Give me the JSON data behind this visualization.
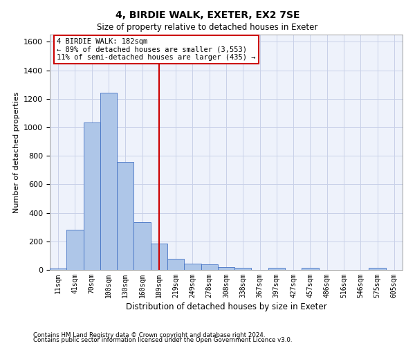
{
  "title": "4, BIRDIE WALK, EXETER, EX2 7SE",
  "subtitle": "Size of property relative to detached houses in Exeter",
  "xlabel": "Distribution of detached houses by size in Exeter",
  "ylabel": "Number of detached properties",
  "footnote1": "Contains HM Land Registry data © Crown copyright and database right 2024.",
  "footnote2": "Contains public sector information licensed under the Open Government Licence v3.0.",
  "bin_labels": [
    "11sqm",
    "41sqm",
    "70sqm",
    "100sqm",
    "130sqm",
    "160sqm",
    "189sqm",
    "219sqm",
    "249sqm",
    "278sqm",
    "308sqm",
    "338sqm",
    "367sqm",
    "397sqm",
    "427sqm",
    "457sqm",
    "486sqm",
    "516sqm",
    "546sqm",
    "575sqm",
    "605sqm"
  ],
  "bar_heights": [
    10,
    280,
    1035,
    1240,
    755,
    335,
    182,
    80,
    45,
    38,
    20,
    13,
    0,
    14,
    0,
    13,
    0,
    0,
    0,
    13,
    0
  ],
  "bar_color": "#aec6e8",
  "bar_edge_color": "#4472c4",
  "ylim": [
    0,
    1650
  ],
  "yticks": [
    0,
    200,
    400,
    600,
    800,
    1000,
    1200,
    1400,
    1600
  ],
  "vline_bin_index": 6,
  "annotation_line1": "4 BIRDIE WALK: 182sqm",
  "annotation_line2": "← 89% of detached houses are smaller (3,553)",
  "annotation_line3": "11% of semi-detached houses are larger (435) →",
  "annotation_box_color": "#ffffff",
  "annotation_box_edge": "#cc0000",
  "vline_color": "#cc0000",
  "grid_color": "#c8d0e8",
  "background_color": "#eef2fb"
}
